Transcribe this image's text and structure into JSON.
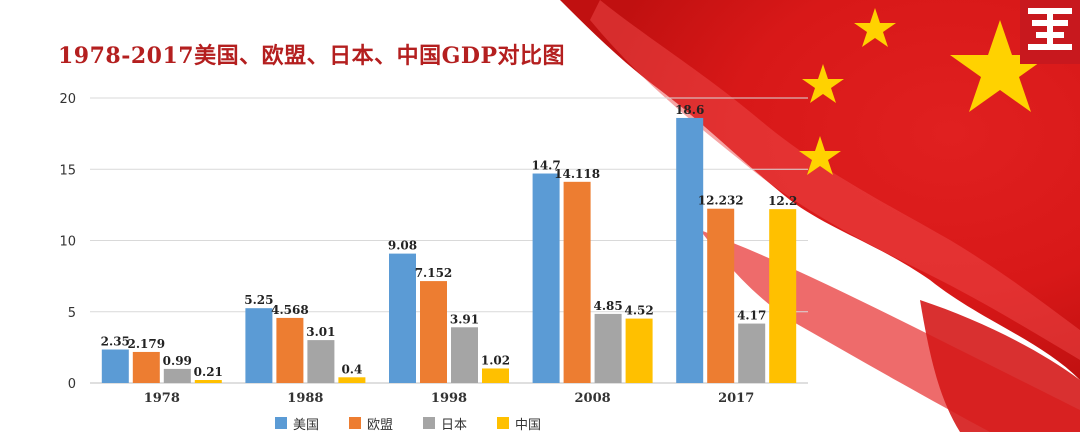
{
  "title": "1978-2017美国、欧盟、日本、中国GDP对比图",
  "colors": {
    "accent": "#b41f1f",
    "flag_red": "#d81e1e",
    "star_yellow": "#ffd200"
  },
  "logo": {
    "icon": "emblem-icon"
  },
  "chart_data": {
    "type": "bar",
    "categories": [
      "1978",
      "1988",
      "1998",
      "2008",
      "2017"
    ],
    "ylim": [
      0,
      20
    ],
    "yticks": [
      0,
      5,
      10,
      15,
      20
    ],
    "grid": true,
    "legend_position": "bottom",
    "series": [
      {
        "name": "美国",
        "color": "#5b9bd5",
        "values": [
          2.35,
          5.25,
          9.08,
          14.7,
          18.6
        ],
        "labels": [
          "2.35",
          "5.25",
          "9.08",
          "14.7",
          "18.6"
        ]
      },
      {
        "name": "欧盟",
        "color": "#ed7d31",
        "values": [
          2.179,
          4.568,
          7.152,
          14.118,
          12.232
        ],
        "labels": [
          "2.179",
          "4.568",
          "7.152",
          "14.118",
          "12.232"
        ]
      },
      {
        "name": "日本",
        "color": "#a5a5a5",
        "values": [
          0.99,
          3.01,
          3.91,
          4.85,
          4.17
        ],
        "labels": [
          "0.99",
          "3.01",
          "3.91",
          "4.85",
          "4.17"
        ]
      },
      {
        "name": "中国",
        "color": "#ffc000",
        "values": [
          0.21,
          0.4,
          1.02,
          4.52,
          12.2
        ],
        "labels": [
          "0.21",
          "0.4",
          "1.02",
          "4.52",
          "12.2"
        ]
      }
    ]
  }
}
